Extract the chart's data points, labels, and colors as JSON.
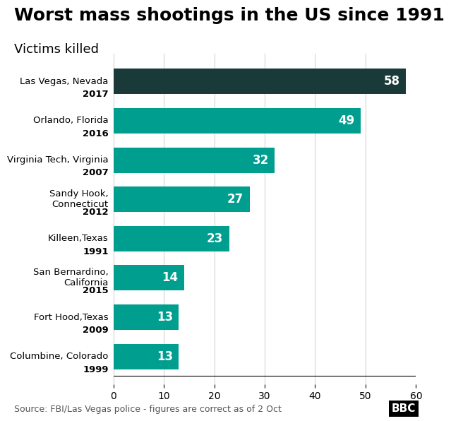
{
  "title": "Worst mass shootings in the US since 1991",
  "subtitle": "Victims killed",
  "source": "Source: FBI/Las Vegas police - figures are correct as of 2 Oct",
  "categories": [
    "Columbine, Colorado\n1999",
    "Fort Hood,Texas\n2009",
    "San Bernardino,\nCalifornia\n2015",
    "Killeen,Texas\n1991",
    "Sandy Hook,\nConnecticut\n2012",
    "Virginia Tech, Virginia\n2007",
    "Orlando, Florida\n2016",
    "Las Vegas, Nevada\n2017"
  ],
  "values": [
    13,
    13,
    14,
    23,
    27,
    32,
    49,
    58
  ],
  "bar_colors": [
    "#009e8e",
    "#009e8e",
    "#009e8e",
    "#009e8e",
    "#009e8e",
    "#009e8e",
    "#009e8e",
    "#1a3a3a"
  ],
  "xlim": [
    0,
    60
  ],
  "xticks": [
    0,
    10,
    20,
    30,
    40,
    50,
    60
  ],
  "value_label_color": "#ffffff",
  "value_label_fontsize": 12,
  "title_fontsize": 18,
  "subtitle_fontsize": 13,
  "tick_label_fontsize": 10,
  "source_fontsize": 9,
  "background_color": "#ffffff",
  "bbc_logo": "BBC"
}
